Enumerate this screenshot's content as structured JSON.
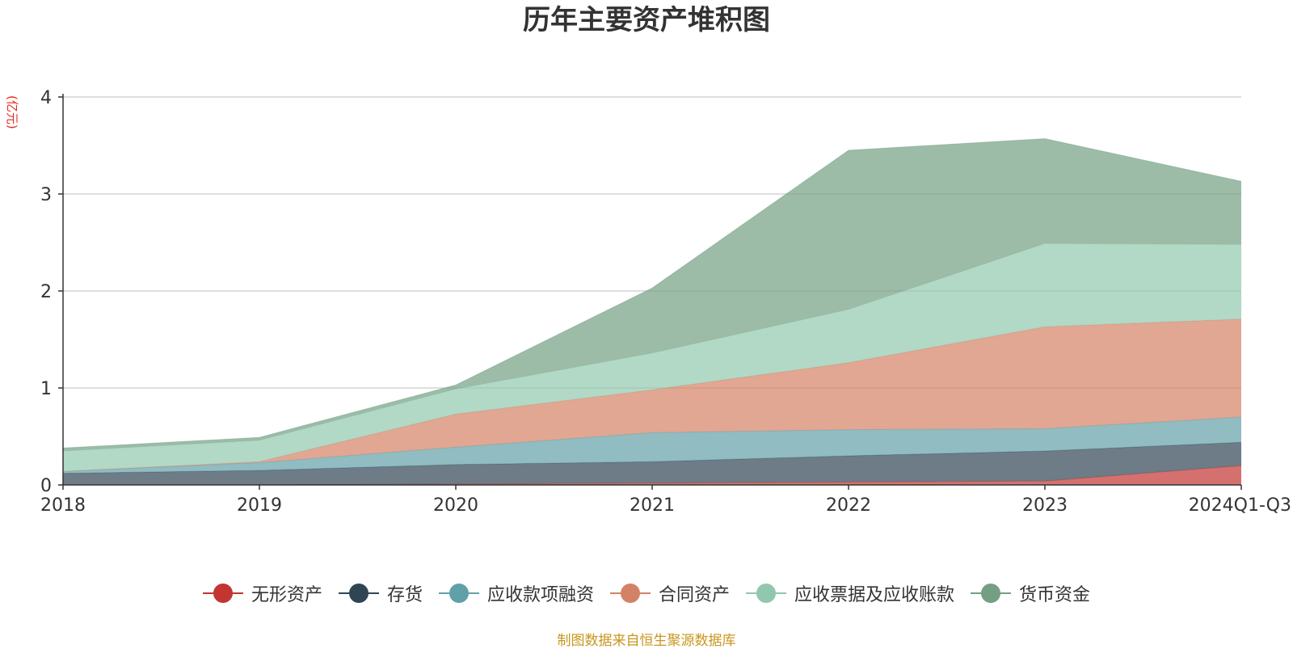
{
  "chart_data": {
    "type": "area",
    "stacked": true,
    "title": "历年主要资产堆积图",
    "unit_label": "(亿元)",
    "categories": [
      "2018",
      "2019",
      "2020",
      "2021",
      "2022",
      "2023",
      "2024Q1-Q3"
    ],
    "ylim": [
      0,
      4
    ],
    "yticks": [
      "0",
      "1",
      "2",
      "3",
      "4"
    ],
    "grid": true,
    "legend_position": "bottom",
    "series": [
      {
        "name": "无形资产",
        "color": "#c23531",
        "values": [
          0.0,
          0.0,
          0.01,
          0.02,
          0.03,
          0.04,
          0.2
        ]
      },
      {
        "name": "存货",
        "color": "#2f4554",
        "values": [
          0.12,
          0.15,
          0.2,
          0.22,
          0.27,
          0.31,
          0.24
        ]
      },
      {
        "name": "应收款项融资",
        "color": "#61a0a8",
        "values": [
          0.02,
          0.08,
          0.18,
          0.3,
          0.27,
          0.23,
          0.26
        ]
      },
      {
        "name": "合同资产",
        "color": "#d48265",
        "values": [
          0.0,
          0.01,
          0.34,
          0.44,
          0.69,
          1.05,
          1.01
        ]
      },
      {
        "name": "应收票据及应收账款",
        "color": "#91c7ae",
        "values": [
          0.21,
          0.22,
          0.26,
          0.38,
          0.55,
          0.86,
          0.77
        ]
      },
      {
        "name": "货币资金",
        "color": "#749f83",
        "values": [
          0.03,
          0.03,
          0.04,
          0.67,
          1.64,
          1.08,
          0.65
        ]
      }
    ]
  },
  "source_note": "制图数据来自恒生聚源数据库"
}
